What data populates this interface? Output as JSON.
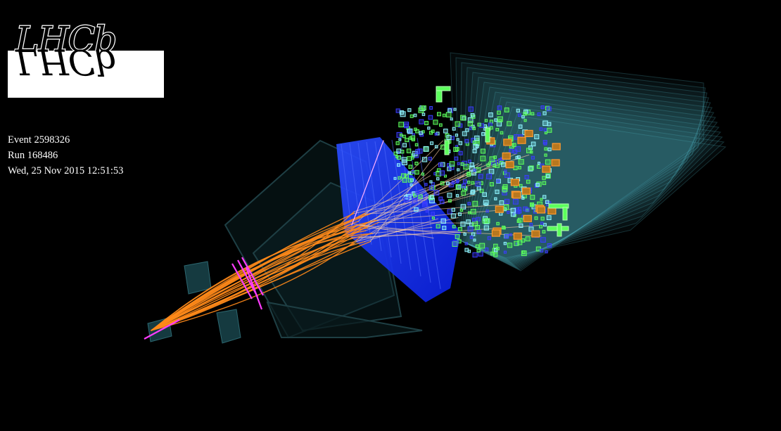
{
  "logo": {
    "text": "LHCb",
    "colors": {
      "box": "#ffffff",
      "ink": "#000000",
      "outline": "#ffffff"
    }
  },
  "event_info": {
    "event": "Event 2598326",
    "run": "Run 168486",
    "datetime": "Wed, 25 Nov 2015 12:51:53"
  },
  "palette": {
    "background": "#000000",
    "muon_planes": "#5fd6e8",
    "detector_shell": "#1f4a52",
    "rich_plane": "#1f3cff",
    "tracks": "#ff8a1a",
    "tracks_light": "#ffd2a8",
    "velo": "#ff3cff",
    "hits_green": "#5cff5c",
    "hits_blue": "#3a3cff",
    "hits_cyan": "#8ff5ff",
    "hits_orange": "#ff9a2e"
  }
}
